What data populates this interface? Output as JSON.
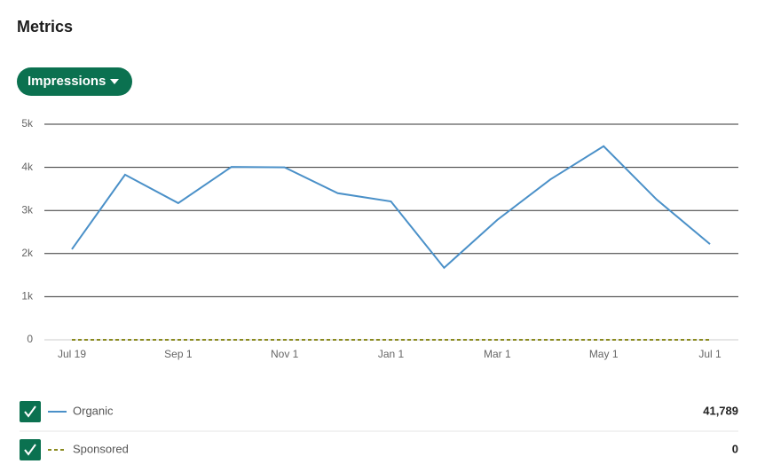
{
  "header": {
    "title": "Metrics"
  },
  "dropdown": {
    "label": "Impressions"
  },
  "chart_data": {
    "type": "line",
    "categories": [
      "Jul 19",
      null,
      "Sep 1",
      null,
      "Nov 1",
      null,
      "Jan 1",
      null,
      "Mar 1",
      null,
      "May 1",
      null,
      "Jul 1"
    ],
    "series": [
      {
        "name": "Organic",
        "color": "#4a90c8",
        "dash": false,
        "values": [
          2100,
          3830,
          3170,
          4010,
          4000,
          3400,
          3210,
          1670,
          2780,
          3720,
          4490,
          3250,
          2220
        ]
      },
      {
        "name": "Sponsored",
        "color": "#8a8a1e",
        "dash": true,
        "values": [
          0,
          0,
          0,
          0,
          0,
          0,
          0,
          0,
          0,
          0,
          0,
          0,
          0
        ]
      }
    ],
    "ylim": [
      0,
      5000
    ],
    "yticks": [
      0,
      {
        "value": 1000,
        "label": "1k"
      },
      {
        "value": 2000,
        "label": "2k"
      },
      {
        "value": 3000,
        "label": "3k"
      },
      {
        "value": 4000,
        "label": "4k"
      },
      {
        "value": 5000,
        "label": "5k"
      }
    ],
    "grid": true
  },
  "legend": [
    {
      "total": "41,789"
    },
    {
      "total": "0"
    }
  ]
}
